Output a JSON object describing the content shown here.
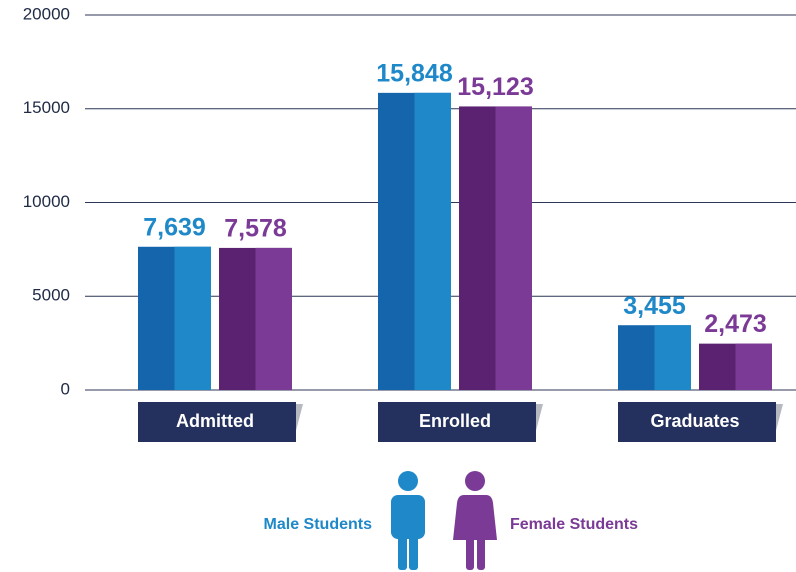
{
  "chart_data": {
    "type": "bar",
    "categories": [
      "Admitted",
      "Enrolled",
      "Graduates"
    ],
    "series": [
      {
        "name": "Male Students",
        "colors": [
          "#1565ad",
          "#1e88c8"
        ],
        "values": [
          7639,
          15848,
          3455
        ],
        "value_labels": [
          "7,639",
          "15,848",
          "3,455"
        ]
      },
      {
        "name": "Female Students",
        "colors": [
          "#5a2270",
          "#7b3a96"
        ],
        "values": [
          7578,
          15123,
          2473
        ],
        "value_labels": [
          "7,578",
          "15,123",
          "2,473"
        ]
      }
    ],
    "ylim": [
      0,
      20000
    ],
    "yticks": [
      0,
      5000,
      10000,
      15000,
      20000
    ],
    "grid": true
  }
}
